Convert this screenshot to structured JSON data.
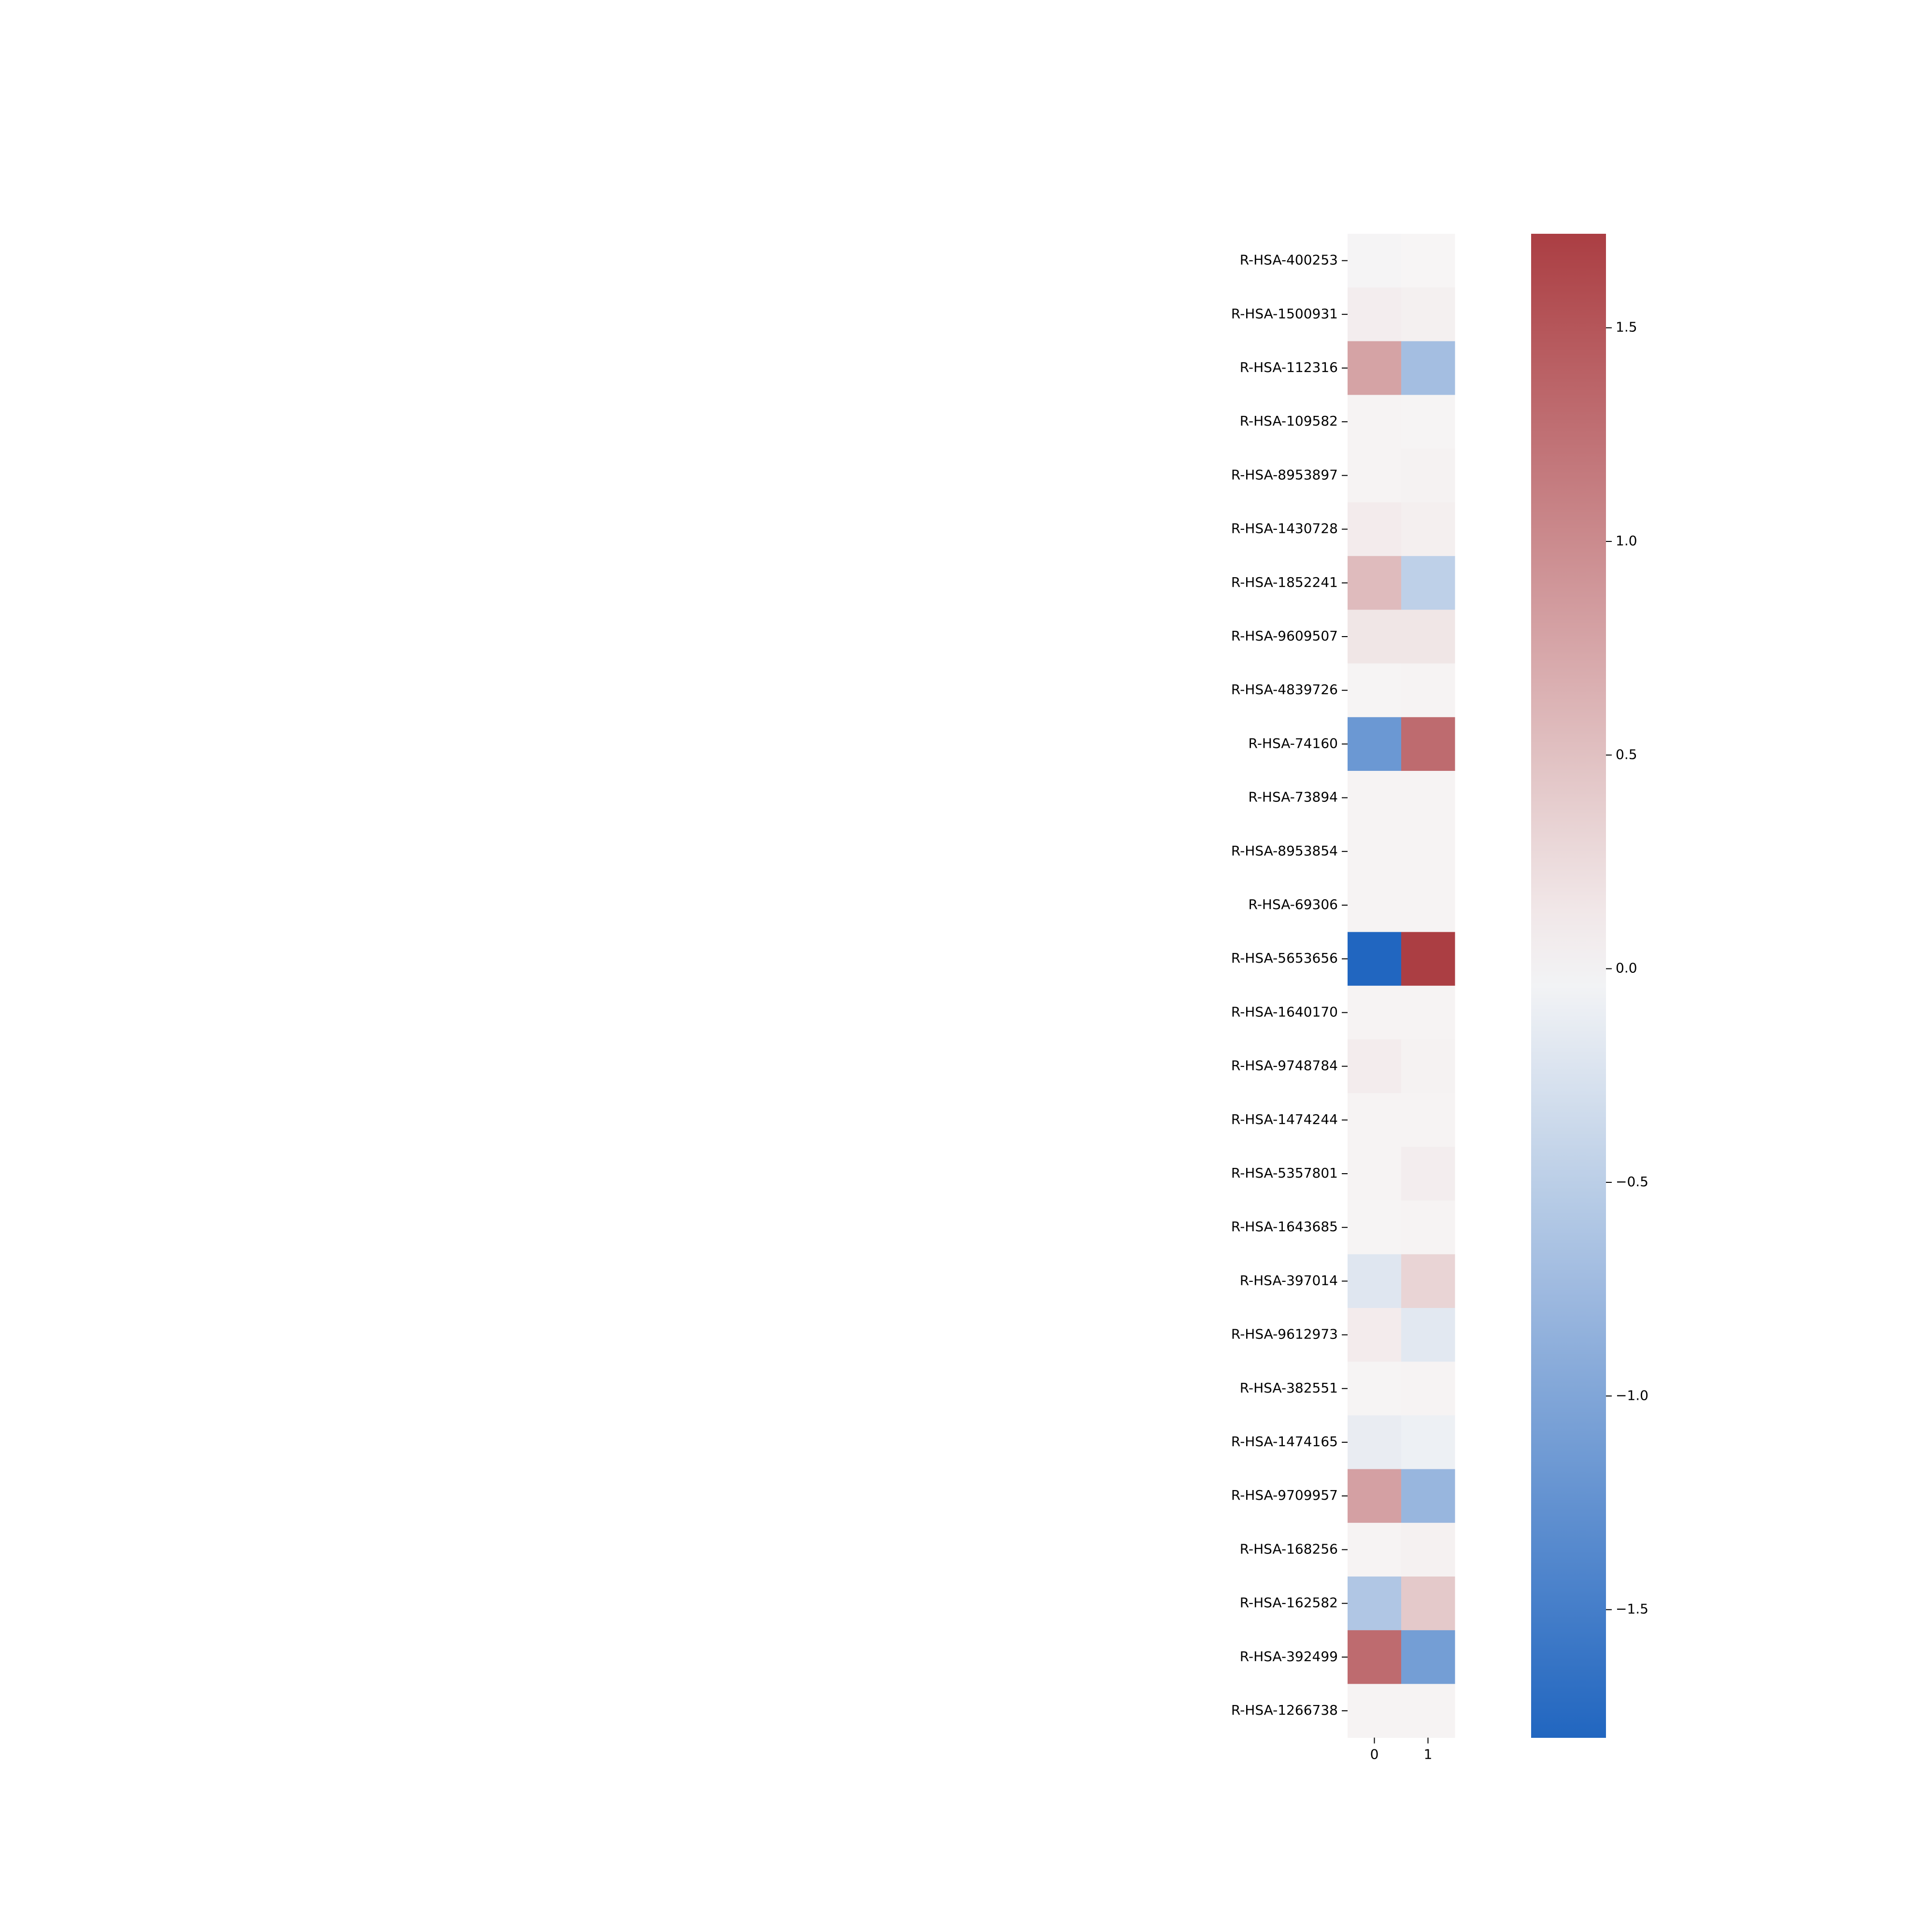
{
  "chart_data": {
    "type": "heatmap",
    "rows": [
      "R-HSA-400253",
      "R-HSA-1500931",
      "R-HSA-112316",
      "R-HSA-109582",
      "R-HSA-8953897",
      "R-HSA-1430728",
      "R-HSA-1852241",
      "R-HSA-9609507",
      "R-HSA-4839726",
      "R-HSA-74160",
      "R-HSA-73894",
      "R-HSA-8953854",
      "R-HSA-69306",
      "R-HSA-5653656",
      "R-HSA-1640170",
      "R-HSA-9748784",
      "R-HSA-1474244",
      "R-HSA-5357801",
      "R-HSA-1643685",
      "R-HSA-397014",
      "R-HSA-9612973",
      "R-HSA-382551",
      "R-HSA-1474165",
      "R-HSA-9709957",
      "R-HSA-168256",
      "R-HSA-162582",
      "R-HSA-392499",
      "R-HSA-1266738"
    ],
    "columns": [
      "0",
      "1"
    ],
    "values": [
      [
        -0.02,
        0.01
      ],
      [
        0.08,
        0.06
      ],
      [
        0.78,
        -0.7
      ],
      [
        0.03,
        0.02
      ],
      [
        0.03,
        0.04
      ],
      [
        0.1,
        0.07
      ],
      [
        0.55,
        -0.48
      ],
      [
        0.15,
        0.15
      ],
      [
        0.02,
        0.03
      ],
      [
        -1.18,
        1.3
      ],
      [
        0.03,
        0.03
      ],
      [
        0.03,
        0.03
      ],
      [
        0.03,
        0.03
      ],
      [
        -1.8,
        1.72
      ],
      [
        0.03,
        0.03
      ],
      [
        0.09,
        0.04
      ],
      [
        0.03,
        0.03
      ],
      [
        0.03,
        0.08
      ],
      [
        0.02,
        0.03
      ],
      [
        -0.2,
        0.32
      ],
      [
        0.1,
        -0.18
      ],
      [
        0.02,
        0.03
      ],
      [
        -0.12,
        -0.08
      ],
      [
        0.8,
        -0.8
      ],
      [
        0.03,
        0.05
      ],
      [
        -0.6,
        0.42
      ],
      [
        1.3,
        -1.1
      ],
      [
        0.03,
        0.03
      ]
    ],
    "colorbar": {
      "vmin": -1.8,
      "vmax": 1.72,
      "ticks": [
        1.5,
        1.0,
        0.5,
        0.0,
        -0.5,
        -1.0,
        -1.5
      ],
      "tick_labels": [
        "1.5",
        "1.0",
        "0.5",
        "0.0",
        "−0.5",
        "−1.0",
        "−1.5"
      ]
    },
    "colormap": {
      "low": "#2166c0",
      "mid": "#f7f6f6",
      "high": "#ab3e43"
    },
    "title": "",
    "xlabel": "",
    "ylabel": ""
  }
}
